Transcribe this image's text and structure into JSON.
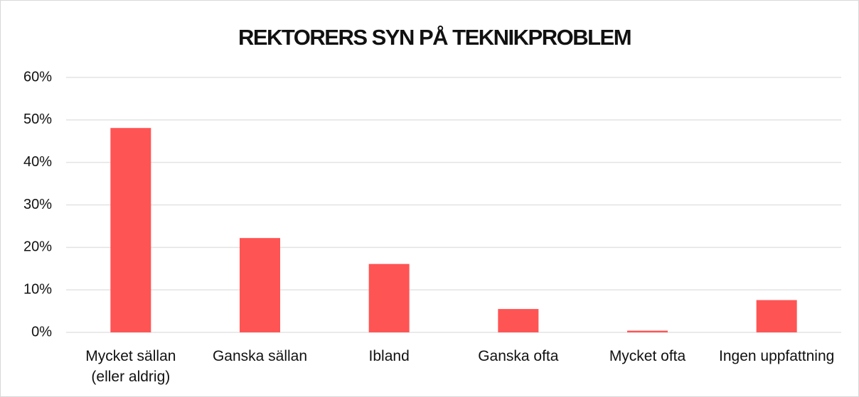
{
  "chart_data": {
    "type": "bar",
    "title": "REKTORERS SYN PÅ TEKNIKPROBLEM",
    "categories": [
      "Mycket sällan (eller aldrig)",
      "Ganska sällan",
      "Ibland",
      "Ganska ofta",
      "Mycket ofta",
      "Ingen uppfattning"
    ],
    "values": [
      48.1,
      22.2,
      16.1,
      5.5,
      0.4,
      7.6
    ],
    "color": "#ff5454",
    "ylim": [
      0,
      60
    ],
    "yticks": [
      {
        "value": 0,
        "label": "0%"
      },
      {
        "value": 10,
        "label": "10%"
      },
      {
        "value": 20,
        "label": "20%"
      },
      {
        "value": 30,
        "label": "30%"
      },
      {
        "value": 40,
        "label": "40%"
      },
      {
        "value": 50,
        "label": "50%"
      },
      {
        "value": 60,
        "label": "60%"
      }
    ],
    "grid": true
  }
}
